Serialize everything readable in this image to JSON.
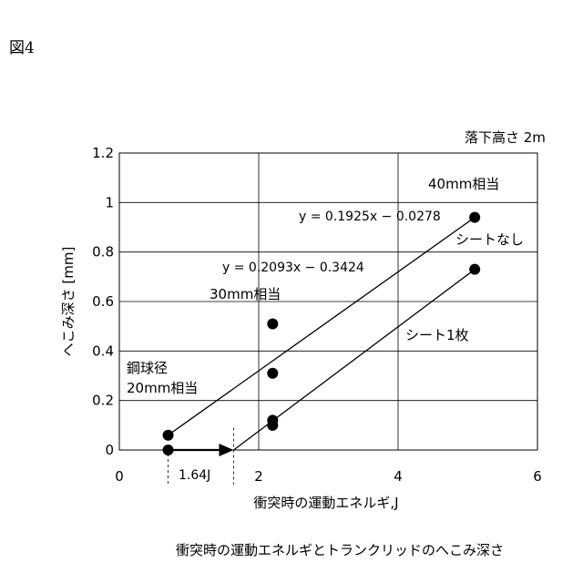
{
  "figure_label": "図4",
  "chart_data": {
    "type": "scatter",
    "title": "",
    "caption": "衝突時の運動エネルギとトランクリッドのへこみ深さ",
    "xlabel": "衝突時の運動エネルギ,J",
    "ylabel": "へこみ深さ [mm]",
    "xlim": [
      0,
      6
    ],
    "ylim": [
      0,
      1.2
    ],
    "x_ticks": [
      "0",
      "2",
      "4",
      "6"
    ],
    "y_ticks": [
      "0",
      "0.2",
      "0.4",
      "0.6",
      "0.8",
      "1",
      "1.2"
    ],
    "x_tick_values": [
      0,
      2,
      4,
      6
    ],
    "y_tick_values": [
      0,
      0.2,
      0.4,
      0.6,
      0.8,
      1.0,
      1.2
    ],
    "grid": true,
    "series": [
      {
        "name": "シートなし",
        "points": [
          {
            "x": 0.7,
            "y": 0.06
          },
          {
            "x": 2.2,
            "y": 0.51
          },
          {
            "x": 2.2,
            "y": 0.31
          },
          {
            "x": 2.2,
            "y": 0.12
          },
          {
            "x": 5.1,
            "y": 0.94
          }
        ],
        "fit_label": "y = 0.1925x − 0.0278",
        "fit_line": [
          [
            0.7,
            0.06
          ],
          [
            5.1,
            0.94
          ]
        ]
      },
      {
        "name": "シート1枚",
        "points": [
          {
            "x": 0.7,
            "y": 0.0
          },
          {
            "x": 2.2,
            "y": 0.1
          },
          {
            "x": 5.1,
            "y": 0.73
          }
        ],
        "fit_label": "y = 0.2093x − 0.3424",
        "fit_line": [
          [
            1.64,
            0.0
          ],
          [
            5.1,
            0.73
          ]
        ]
      }
    ],
    "arrow": {
      "from": [
        0.7,
        0.0
      ],
      "to": [
        1.64,
        0.0
      ]
    },
    "marker_value_x": 1.64,
    "annotations": {
      "drop_height": "落下高さ 2m",
      "ball_40": "40mm相当",
      "ball_30": "30mm相当",
      "ball_20_line1": "鋼球径",
      "ball_20_line2": "20mm相当",
      "energy_164": "1.64J",
      "no_sheet": "シートなし",
      "one_sheet": "シート1枚",
      "fit_upper": "y = 0.1925x − 0.0278",
      "fit_lower": "y = 0.2093x − 0.3424"
    }
  }
}
